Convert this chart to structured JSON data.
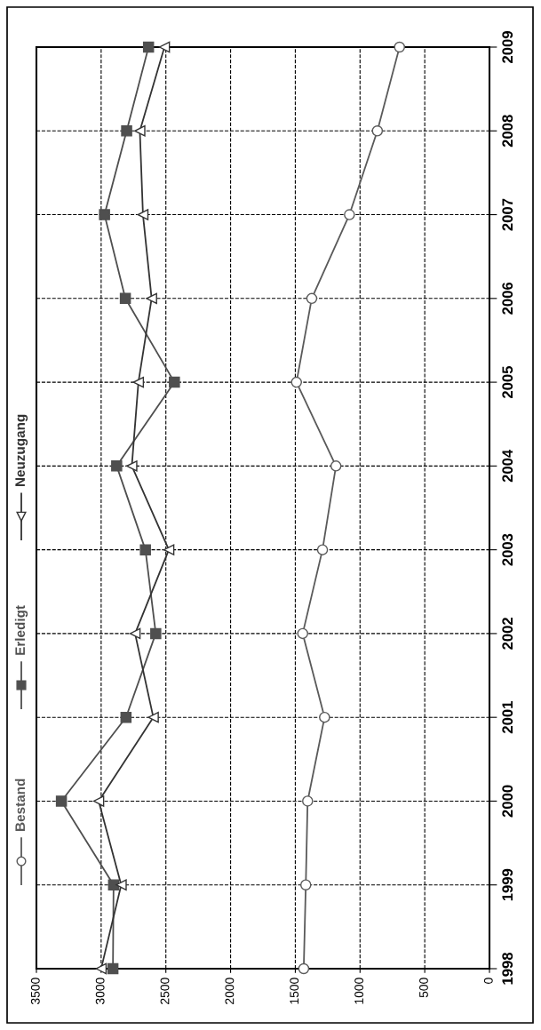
{
  "chart_data": {
    "type": "line",
    "orientation": "horizontal",
    "categories": [
      "2009",
      "2008",
      "2007",
      "2006",
      "2005",
      "2004",
      "2003",
      "2002",
      "2001",
      "2000",
      "1999",
      "1998"
    ],
    "series": [
      {
        "name": "Bestand",
        "color": "#5a5a5a",
        "marker": "circle",
        "values": [
          695,
          866,
          1082,
          1373,
          1491,
          1186,
          1290,
          1443,
          1274,
          1405,
          1419,
          1435
        ]
      },
      {
        "name": "Erledigt",
        "color": "#4f4f4f",
        "marker": "square",
        "values": [
          2634,
          2803,
          2974,
          2813,
          2434,
          2880,
          2658,
          2578,
          2808,
          3307,
          2904,
          2909
        ]
      },
      {
        "name": "Neuzugang",
        "color": "#333333",
        "marker": "triangle",
        "values": [
          2511,
          2701,
          2677,
          2610,
          2712,
          2763,
          2477,
          2738,
          2597,
          3019,
          2845,
          3000
        ]
      }
    ],
    "xlim": [
      3500,
      0
    ],
    "xticks": [
      3500,
      3000,
      2500,
      2000,
      1500,
      1000,
      500,
      0
    ],
    "grid": true,
    "legend": "left"
  }
}
